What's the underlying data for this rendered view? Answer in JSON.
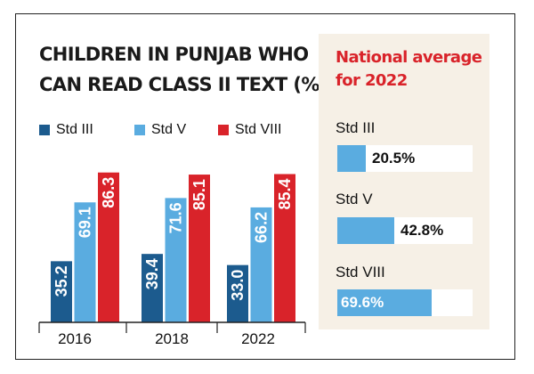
{
  "colors": {
    "std3": "#1c5b8e",
    "std5": "#5aace0",
    "std8": "#d9232a",
    "panel_bg": "#f6f0e6",
    "panel_title": "#d9232a"
  },
  "chart_data": {
    "type": "bar",
    "title": "CHILDREN IN PUNJAB WHO CAN READ CLASS II TEXT (%)",
    "title_lines": [
      "CHILDREN IN PUNJAB WHO",
      "CAN READ CLASS II TEXT (%)"
    ],
    "categories": [
      "2016",
      "2018",
      "2022"
    ],
    "series": [
      {
        "name": "Std III",
        "values": [
          35.2,
          39.4,
          33.0
        ],
        "labels": [
          "35.2",
          "39.4",
          "33.0"
        ]
      },
      {
        "name": "Std V",
        "values": [
          69.1,
          71.6,
          66.2
        ],
        "labels": [
          "69.1",
          "71.6",
          "66.2"
        ]
      },
      {
        "name": "Std VIII",
        "values": [
          86.3,
          85.1,
          85.4
        ],
        "labels": [
          "86.3",
          "85.1",
          "85.4"
        ]
      }
    ],
    "xlabel": "",
    "ylabel": "",
    "ylim": [
      0,
      100
    ],
    "legend": "top"
  },
  "national": {
    "title_lines": [
      "National average",
      "for 2022"
    ],
    "items": [
      {
        "label": "Std III",
        "value": 20.5,
        "display": "20.5%"
      },
      {
        "label": "Std V",
        "value": 42.8,
        "display": "42.8%"
      },
      {
        "label": "Std VIII",
        "value": 69.6,
        "display": "69.6%"
      }
    ]
  }
}
